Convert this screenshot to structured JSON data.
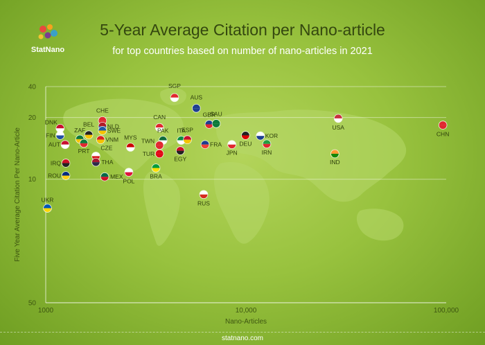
{
  "header": {
    "title": "5-Year Average Citation per Nano-article",
    "subtitle": "for top countries based on number of nano-articles in 2021",
    "brand": "StatNano"
  },
  "footer": {
    "site": "statnano.com"
  },
  "chart_data": {
    "type": "scatter",
    "xlabel": "Nano-Articles",
    "ylabel": "Five Year Average Citation Per Nano-Article",
    "x_scale": "log",
    "y_scale": "reciprocal",
    "xlim": [
      1000,
      100000
    ],
    "ylim": [
      50,
      40
    ],
    "x_ticks": [
      1000,
      10000,
      100000
    ],
    "x_tick_labels": [
      "1000",
      "10,000",
      "100,000"
    ],
    "y_ticks": [
      40,
      20,
      10,
      50
    ],
    "y_tick_labels": [
      "40",
      "20",
      "10",
      "50"
    ],
    "grid": "horizontal",
    "points": [
      {
        "label": "SGP",
        "x": 4400,
        "y": 29.5,
        "colors": [
          "#e0282f",
          "#ffffff"
        ]
      },
      {
        "label": "AUS",
        "x": 5650,
        "y": 23.5,
        "colors": [
          "#1d3f8f",
          "#1d3f8f"
        ]
      },
      {
        "label": "CHE",
        "x": 1920,
        "y": 19.0,
        "colors": [
          "#e0282f",
          "#e0282f"
        ]
      },
      {
        "label": "USA",
        "x": 28900,
        "y": 19.7,
        "colors": [
          "#c8313e",
          "#ffffff"
        ]
      },
      {
        "label": "CHN",
        "x": 96200,
        "y": 17.8,
        "colors": [
          "#e0282f",
          "#e0282f"
        ]
      },
      {
        "label": "DNK",
        "x": 1180,
        "y": 17.0,
        "colors": [
          "#c8102e",
          "#ffffff"
        ]
      },
      {
        "label": "NLD",
        "x": 1920,
        "y": 17.5,
        "colors": [
          "#ae1c28",
          "#21468b"
        ]
      },
      {
        "label": "SWE",
        "x": 1920,
        "y": 16.5,
        "colors": [
          "#1f5aa6",
          "#f5c400"
        ]
      },
      {
        "label": "CAN",
        "x": 3700,
        "y": 17.2,
        "colors": [
          "#e0282f",
          "#ffffff"
        ]
      },
      {
        "label": "GBR",
        "x": 6550,
        "y": 18.0,
        "colors": [
          "#1d3f8f",
          "#e0282f"
        ]
      },
      {
        "label": "SAU",
        "x": 7100,
        "y": 18.2,
        "colors": [
          "#0d7a3a",
          "#0d7a3a"
        ]
      },
      {
        "label": "FIN",
        "x": 1180,
        "y": 15.5,
        "colors": [
          "#ffffff",
          "#1f4fa0"
        ]
      },
      {
        "label": "ZAF",
        "x": 1480,
        "y": 14.8,
        "colors": [
          "#0d7a3a",
          "#f5c400"
        ]
      },
      {
        "label": "BEL",
        "x": 1640,
        "y": 15.6,
        "colors": [
          "#222222",
          "#f5c400"
        ]
      },
      {
        "label": "VNM",
        "x": 1880,
        "y": 14.7,
        "colors": [
          "#da251d",
          "#f5c400"
        ]
      },
      {
        "label": "PAK",
        "x": 3850,
        "y": 14.6,
        "colors": [
          "#0d6b3a",
          "#ffffff"
        ]
      },
      {
        "label": "ITA",
        "x": 4750,
        "y": 14.6,
        "colors": [
          "#0a8f44",
          "#ffffff"
        ]
      },
      {
        "label": "ESP",
        "x": 5100,
        "y": 14.7,
        "colors": [
          "#c8102e",
          "#f5c400"
        ]
      },
      {
        "label": "DEU",
        "x": 9950,
        "y": 15.5,
        "colors": [
          "#222222",
          "#dd0000"
        ]
      },
      {
        "label": "KOR",
        "x": 11800,
        "y": 15.4,
        "colors": [
          "#ffffff",
          "#1d3f8f"
        ]
      },
      {
        "label": "AUT",
        "x": 1250,
        "y": 13.9,
        "colors": [
          "#c8102e",
          "#ffffff"
        ]
      },
      {
        "label": "PRT",
        "x": 1550,
        "y": 14.1,
        "colors": [
          "#0d7a3a",
          "#e0282f"
        ]
      },
      {
        "label": "MYS",
        "x": 2650,
        "y": 13.5,
        "colors": [
          "#cc0001",
          "#ffffff"
        ]
      },
      {
        "label": "TWN",
        "x": 3700,
        "y": 13.8,
        "colors": [
          "#e0282f",
          "#e0282f"
        ]
      },
      {
        "label": "FRA",
        "x": 6250,
        "y": 13.9,
        "colors": [
          "#1d3f8f",
          "#ef4135"
        ]
      },
      {
        "label": "JPN",
        "x": 8500,
        "y": 13.9,
        "colors": [
          "#ffffff",
          "#e0282f"
        ]
      },
      {
        "label": "IRN",
        "x": 12700,
        "y": 14.0,
        "colors": [
          "#239f40",
          "#e0282f"
        ]
      },
      {
        "label": "TUR",
        "x": 3700,
        "y": 12.6,
        "colors": [
          "#e30a17",
          "#e30a17"
        ]
      },
      {
        "label": "CZE",
        "x": 1780,
        "y": 12.3,
        "colors": [
          "#ffffff",
          "#d7141a"
        ]
      },
      {
        "label": "EGY",
        "x": 4700,
        "y": 13.0,
        "colors": [
          "#ce1126",
          "#222222"
        ]
      },
      {
        "label": "IND",
        "x": 27800,
        "y": 12.6,
        "colors": [
          "#ff9933",
          "#138808"
        ]
      },
      {
        "label": "IRQ",
        "x": 1260,
        "y": 11.5,
        "colors": [
          "#ce1126",
          "#222222"
        ]
      },
      {
        "label": "THA",
        "x": 1780,
        "y": 11.6,
        "colors": [
          "#a51931",
          "#2d2a4a"
        ]
      },
      {
        "label": "BRA",
        "x": 3550,
        "y": 11.0,
        "colors": [
          "#009c3b",
          "#ffdf00"
        ]
      },
      {
        "label": "POL",
        "x": 2600,
        "y": 10.6,
        "colors": [
          "#ffffff",
          "#dc143c"
        ]
      },
      {
        "label": "ROU",
        "x": 1260,
        "y": 10.3,
        "colors": [
          "#002b7f",
          "#fcd116"
        ]
      },
      {
        "label": "MEX",
        "x": 1970,
        "y": 10.2,
        "colors": [
          "#006847",
          "#ce1126"
        ]
      },
      {
        "label": "RUS",
        "x": 6150,
        "y": 8.9,
        "colors": [
          "#ffffff",
          "#d52b1e"
        ]
      },
      {
        "label": "UKR",
        "x": 1020,
        "y": 8.1,
        "colors": [
          "#0057b7",
          "#ffd700"
        ]
      }
    ]
  }
}
